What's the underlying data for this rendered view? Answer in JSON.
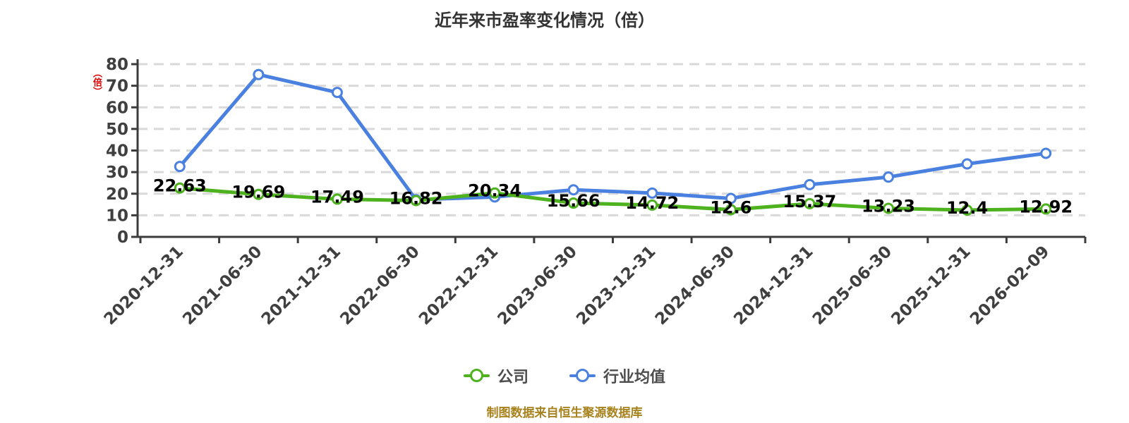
{
  "header": {
    "title": "近年来市盈率变化情况（倍）"
  },
  "y_axis": {
    "unit_label": "（倍）"
  },
  "legend": {
    "items": [
      {
        "label": "公司",
        "color": "#4DB21E"
      },
      {
        "label": "行业均值",
        "color": "#4A80E0"
      }
    ]
  },
  "footer": {
    "text": "制图数据来自恒生聚源数据库"
  },
  "chart_data": {
    "type": "line",
    "title": "近年来市盈率变化情况（倍）",
    "categories": [
      "2020-12-31",
      "2021-06-30",
      "2021-12-31",
      "2022-06-30",
      "2022-12-31",
      "2023-06-30",
      "2023-12-31",
      "2024-06-30",
      "2024-12-31",
      "2025-06-30",
      "2025-12-31",
      "2026-02-09"
    ],
    "series": [
      {
        "name": "公司",
        "color": "#4DB21E",
        "values": [
          22.63,
          19.69,
          17.49,
          16.82,
          20.34,
          15.66,
          14.72,
          12.6,
          15.37,
          13.23,
          12.4,
          12.92
        ],
        "point_labels": [
          "22.63",
          "19.69",
          "17.49",
          "16.82",
          "20.34",
          "15.66",
          "14.72",
          "12.6",
          "15.37",
          "13.23",
          "12.4",
          "12.92"
        ],
        "labels_visible": true
      },
      {
        "name": "行业均值",
        "color": "#4A80E0",
        "values": [
          32.6,
          75.2,
          66.9,
          17.2,
          18.5,
          21.8,
          20.3,
          17.8,
          24.2,
          27.7,
          33.8,
          38.7
        ],
        "point_labels": [],
        "labels_visible": false
      }
    ],
    "xlabel": "",
    "ylabel": "（倍）",
    "ylim": [
      0,
      80
    ],
    "y_ticks": [
      0,
      10,
      20,
      30,
      40,
      50,
      60,
      70,
      80
    ],
    "grid": "horizontal-dashed",
    "legend_position": "bottom",
    "x_tick_label_rotation_deg": 45
  },
  "style": {
    "grid_color": "#d9d9d9",
    "axis_color": "#3c3c3c",
    "tick_label_color": "#3f3f3f",
    "data_label_color": "#000000",
    "title_color": "#333333",
    "legend_text_color": "#4d4d4d",
    "footer_color": "#a8821d",
    "unit_label_color": "#dd0000",
    "marker_fill": "#ffffff"
  }
}
